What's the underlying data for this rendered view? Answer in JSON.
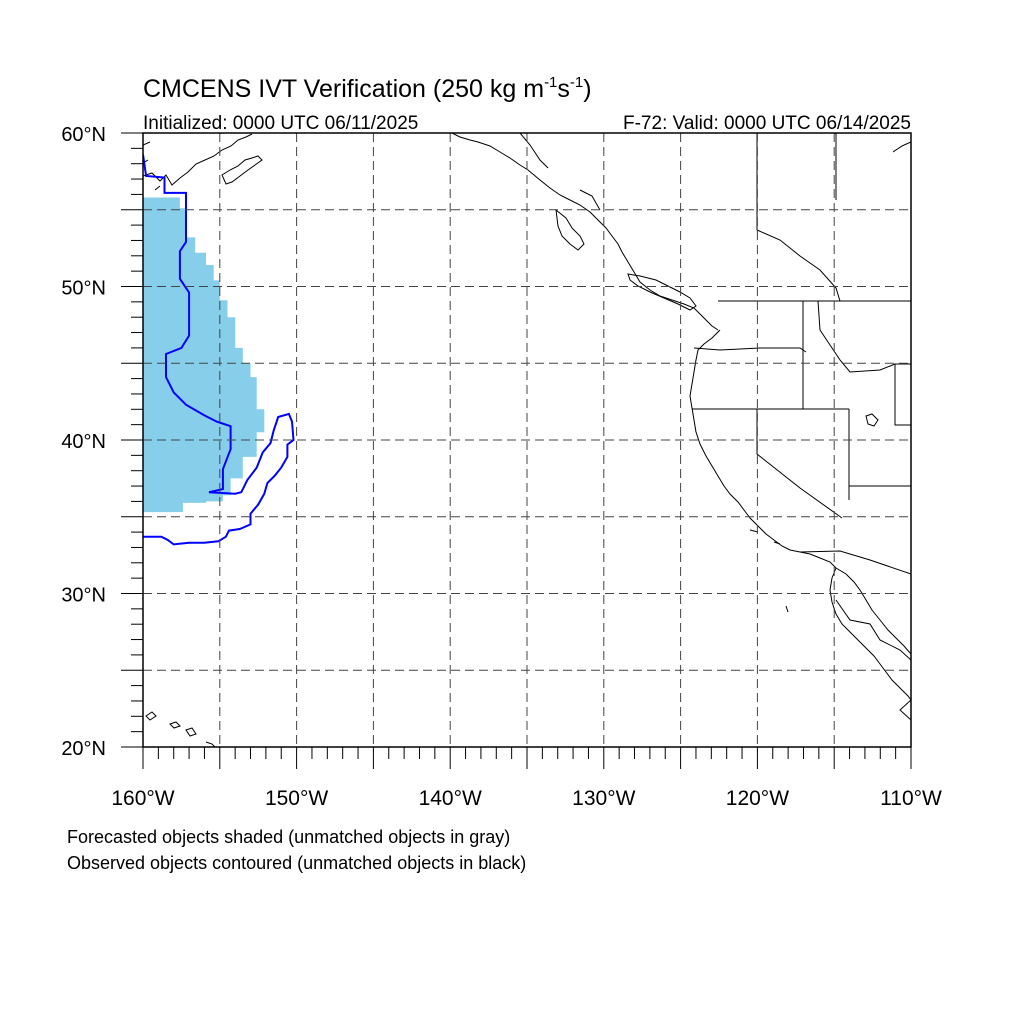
{
  "title": {
    "main": "CMCENS IVT Verification (250 kg m",
    "sup1": "-1",
    "mid": "s",
    "sup2": "-1",
    "end": ")"
  },
  "subtitle_left": "Initialized: 0000 UTC 06/11/2025",
  "subtitle_right": "F-72: Valid: 0000 UTC 06/14/2025",
  "lat_labels": [
    {
      "value": 60,
      "text": "60°N"
    },
    {
      "value": 50,
      "text": "50°N"
    },
    {
      "value": 40,
      "text": "40°N"
    },
    {
      "value": 30,
      "text": "30°N"
    },
    {
      "value": 20,
      "text": "20°N"
    }
  ],
  "lon_labels": [
    {
      "value": -160,
      "text": "160°W"
    },
    {
      "value": -150,
      "text": "150°W"
    },
    {
      "value": -140,
      "text": "140°W"
    },
    {
      "value": -130,
      "text": "130°W"
    },
    {
      "value": -120,
      "text": "120°W"
    },
    {
      "value": -110,
      "text": "110°W"
    }
  ],
  "map_extent": {
    "lon_min": -160,
    "lon_max": -110,
    "lat_min": 20,
    "lat_max": 60
  },
  "colors": {
    "forecast_fill": "#87ceeb",
    "observed_contour": "#0000ff",
    "coastline": "#000000",
    "gridline": "#444444"
  },
  "forecast_object": {
    "name": "Forecasted object (shaded)",
    "polygon": [
      [
        -160,
        55.8
      ],
      [
        -157.6,
        55.8
      ],
      [
        -157.6,
        55.1
      ],
      [
        -157.2,
        55.1
      ],
      [
        -157.2,
        53.2
      ],
      [
        -156.6,
        53.2
      ],
      [
        -156.6,
        52.2
      ],
      [
        -155.9,
        52.2
      ],
      [
        -155.9,
        51.4
      ],
      [
        -155.4,
        51.4
      ],
      [
        -155.4,
        50.4
      ],
      [
        -155.0,
        50.4
      ],
      [
        -155.0,
        49.1
      ],
      [
        -154.5,
        49.1
      ],
      [
        -154.5,
        48.0
      ],
      [
        -154.0,
        48.0
      ],
      [
        -154.0,
        46.0
      ],
      [
        -153.5,
        46.0
      ],
      [
        -153.5,
        45.0
      ],
      [
        -153.0,
        45.0
      ],
      [
        -153.0,
        44.1
      ],
      [
        -152.6,
        44.1
      ],
      [
        -152.6,
        42.0
      ],
      [
        -152.1,
        42.0
      ],
      [
        -152.1,
        40.5
      ],
      [
        -152.6,
        40.5
      ],
      [
        -152.6,
        38.9
      ],
      [
        -153.5,
        38.9
      ],
      [
        -153.5,
        37.5
      ],
      [
        -154.3,
        37.5
      ],
      [
        -154.3,
        36.4
      ],
      [
        -154.8,
        36.4
      ],
      [
        -154.8,
        36.0
      ],
      [
        -155.9,
        36.0
      ],
      [
        -155.9,
        35.9
      ],
      [
        -157.4,
        35.9
      ],
      [
        -157.4,
        35.3
      ],
      [
        -160,
        35.3
      ]
    ]
  },
  "observed_objects": [
    {
      "name": "Observed object 1",
      "polyline": [
        [
          -160,
          58.6
        ],
        [
          -159.8,
          57.2
        ],
        [
          -158.6,
          57.1
        ],
        [
          -158.6,
          56.1
        ],
        [
          -157.2,
          56.1
        ],
        [
          -157.2,
          52.9
        ],
        [
          -157.6,
          52.3
        ],
        [
          -157.6,
          50.5
        ],
        [
          -157.0,
          49.6
        ],
        [
          -157.0,
          46.8
        ],
        [
          -157.5,
          46.0
        ],
        [
          -158.5,
          45.6
        ],
        [
          -158.5,
          44.1
        ],
        [
          -158.0,
          43.1
        ],
        [
          -157.2,
          42.3
        ],
        [
          -156.0,
          41.6
        ],
        [
          -155.2,
          41.2
        ],
        [
          -154.3,
          40.9
        ],
        [
          -154.3,
          39.4
        ],
        [
          -154.8,
          38.1
        ],
        [
          -154.8,
          36.8
        ],
        [
          -155.7,
          36.6
        ],
        [
          -154.0,
          36.5
        ],
        [
          -153.6,
          36.6
        ],
        [
          -153.2,
          37.4
        ],
        [
          -152.6,
          38.2
        ],
        [
          -152.2,
          39.2
        ],
        [
          -151.7,
          39.8
        ],
        [
          -151.5,
          40.6
        ],
        [
          -151.2,
          41.5
        ],
        [
          -150.5,
          41.7
        ],
        [
          -150.3,
          41.2
        ],
        [
          -150.2,
          40.0
        ],
        [
          -150.6,
          39.7
        ],
        [
          -150.6,
          38.9
        ],
        [
          -151.0,
          38.2
        ],
        [
          -151.4,
          37.7
        ],
        [
          -151.9,
          37.2
        ],
        [
          -152.1,
          36.5
        ],
        [
          -152.5,
          35.8
        ],
        [
          -153.0,
          35.2
        ],
        [
          -153.0,
          34.5
        ],
        [
          -153.7,
          34.2
        ],
        [
          -154.4,
          34.1
        ],
        [
          -154.6,
          33.7
        ],
        [
          -155.1,
          33.4
        ],
        [
          -156.0,
          33.3
        ],
        [
          -157.0,
          33.3
        ],
        [
          -158.0,
          33.2
        ],
        [
          -158.4,
          33.5
        ],
        [
          -158.8,
          33.7
        ],
        [
          -160,
          33.7
        ]
      ]
    }
  ],
  "caption_line1": "Forecasted objects shaded (unmatched objects in gray)",
  "caption_line2": "Observed objects contoured (unmatched objects in black)"
}
